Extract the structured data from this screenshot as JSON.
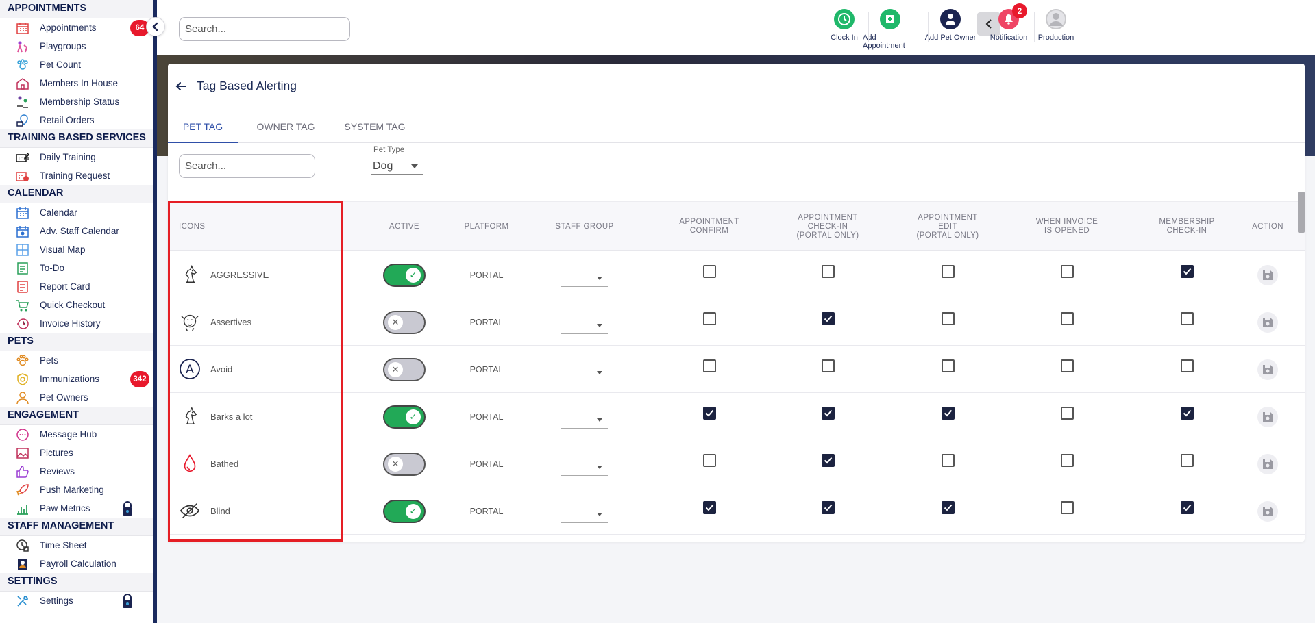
{
  "sidebar": {
    "sections": [
      {
        "title": "APPOINTMENTS",
        "items": [
          {
            "label": "Appointments",
            "icon": "calendar-grid-icon",
            "badge": "64"
          },
          {
            "label": "Playgroups",
            "icon": "dogs-playing-icon"
          },
          {
            "label": "Pet Count",
            "icon": "paw-count-icon"
          },
          {
            "label": "Members In House",
            "icon": "house-icon"
          },
          {
            "label": "Membership Status",
            "icon": "people-status-icon"
          },
          {
            "label": "Retail Orders",
            "icon": "retail-pin-icon"
          }
        ]
      },
      {
        "title": "TRAINING BASED SERVICES",
        "items": [
          {
            "label": "Daily Training",
            "icon": "today-training-icon"
          },
          {
            "label": "Training Request",
            "icon": "training-request-icon"
          }
        ]
      },
      {
        "title": "CALENDAR",
        "items": [
          {
            "label": "Calendar",
            "icon": "calendar-icon"
          },
          {
            "label": "Adv. Staff Calendar",
            "icon": "staff-calendar-icon"
          },
          {
            "label": "Visual Map",
            "icon": "grid-map-icon"
          },
          {
            "label": "To-Do",
            "icon": "todo-icon"
          },
          {
            "label": "Report Card",
            "icon": "report-card-icon"
          },
          {
            "label": "Quick Checkout",
            "icon": "cart-icon"
          },
          {
            "label": "Invoice History",
            "icon": "invoice-history-icon"
          }
        ]
      },
      {
        "title": "PETS",
        "items": [
          {
            "label": "Pets",
            "icon": "paw-icon"
          },
          {
            "label": "Immunizations",
            "icon": "shield-immunization-icon",
            "badge": "342"
          },
          {
            "label": "Pet Owners",
            "icon": "person-icon"
          }
        ]
      },
      {
        "title": "ENGAGEMENT",
        "items": [
          {
            "label": "Message Hub",
            "icon": "chat-bubble-icon"
          },
          {
            "label": "Pictures",
            "icon": "image-icon"
          },
          {
            "label": "Reviews",
            "icon": "thumbs-up-icon"
          },
          {
            "label": "Push Marketing",
            "icon": "rocket-icon"
          },
          {
            "label": "Paw Metrics",
            "icon": "bar-chart-icon",
            "locked": true
          }
        ]
      },
      {
        "title": "STAFF MANAGEMENT",
        "items": [
          {
            "label": "Time Sheet",
            "icon": "clock-sheet-icon"
          },
          {
            "label": "Payroll Calculation",
            "icon": "payroll-icon"
          }
        ]
      },
      {
        "title": "SETTINGS",
        "items": [
          {
            "label": "Settings",
            "icon": "tools-icon",
            "locked": true
          }
        ]
      }
    ]
  },
  "topbar": {
    "search_placeholder": "Search...",
    "actions": [
      {
        "label": "Clock In",
        "icon": "clock-icon",
        "color": "#1fb86a"
      },
      {
        "label": "Add Appointment",
        "icon": "add-appointment-icon",
        "color": "#1fb86a"
      },
      {
        "label": "Add Pet Owner",
        "icon": "add-person-icon",
        "color": "#1b2450"
      },
      {
        "label": "Notification",
        "icon": "bell-icon",
        "color": "#ef4565",
        "badge": "2"
      },
      {
        "label": "Production",
        "icon": "avatar-icon",
        "color": "#c9c9cc"
      }
    ]
  },
  "page": {
    "title": "Tag Based Alerting",
    "tabs": [
      {
        "label": "PET TAG",
        "active": true
      },
      {
        "label": "OWNER TAG",
        "active": false
      },
      {
        "label": "SYSTEM TAG",
        "active": false
      }
    ],
    "filter_search_placeholder": "Search...",
    "pet_type_label": "Pet Type",
    "pet_type_value": "Dog"
  },
  "table": {
    "columns": {
      "icons": "ICONS",
      "active": "ACTIVE",
      "platform": "PLATFORM",
      "staff_group": "STAFF GROUP",
      "appt_confirm": "APPOINTMENT\nCONFIRM",
      "appt_checkin": "APPOINTMENT\nCHECK-IN\n(PORTAL ONLY)",
      "appt_edit": "APPOINTMENT\nEDIT\n(PORTAL ONLY)",
      "invoice_opened": "WHEN INVOICE\nIS OPENED",
      "membership_checkin": "MEMBERSHIP\nCHECK-IN",
      "action": "ACTION"
    },
    "rows": [
      {
        "name": "AGGRESSIVE",
        "icon": "aggressive-horse-icon",
        "active": true,
        "platform": "PORTAL",
        "checks": [
          false,
          false,
          false,
          false,
          true
        ]
      },
      {
        "name": "Assertives",
        "icon": "assertive-dog-icon",
        "active": false,
        "platform": "PORTAL",
        "checks": [
          false,
          true,
          false,
          false,
          false
        ]
      },
      {
        "name": "Avoid",
        "icon": "avoid-letter-a-icon",
        "active": false,
        "platform": "PORTAL",
        "checks": [
          false,
          false,
          false,
          false,
          false
        ]
      },
      {
        "name": "Barks a lot",
        "icon": "barks-horse-icon",
        "active": true,
        "platform": "PORTAL",
        "checks": [
          true,
          true,
          true,
          false,
          true
        ]
      },
      {
        "name": "Bathed",
        "icon": "water-drop-icon",
        "active": false,
        "platform": "PORTAL",
        "checks": [
          false,
          true,
          false,
          false,
          false
        ]
      },
      {
        "name": "Blind",
        "icon": "eye-slash-icon",
        "active": true,
        "platform": "PORTAL",
        "checks": [
          true,
          true,
          true,
          false,
          true
        ]
      }
    ]
  }
}
